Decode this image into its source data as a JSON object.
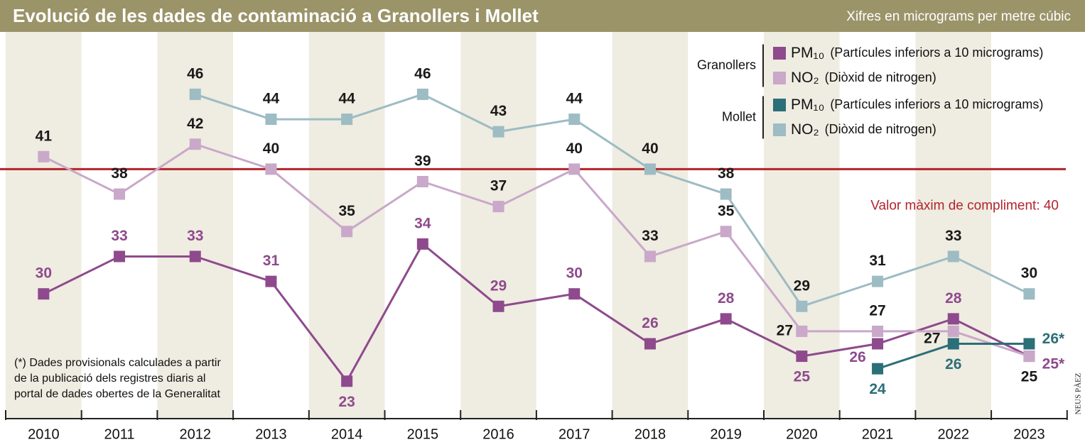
{
  "chart_data": {
    "type": "line",
    "title": "Evolució de les dades de contaminació a Granollers i Mollet",
    "subtitle": "Xifres en micrograms per metre cúbic",
    "categories": [
      "2010",
      "2011",
      "2012",
      "2013",
      "2014",
      "2015",
      "2016",
      "2017",
      "2018",
      "2019",
      "2020",
      "2021",
      "2022",
      "2023"
    ],
    "ylim": [
      20,
      51
    ],
    "legend_groups": [
      "Granollers",
      "Mollet"
    ],
    "series": [
      {
        "name": "PM₁₀",
        "description": "(Partícules inferiors a 10 micrograms)",
        "color": "#8e4a8c",
        "label_color": "#8e4a8c",
        "values": [
          30,
          33,
          33,
          31,
          23,
          34,
          29,
          30,
          26,
          28,
          25,
          26,
          28,
          25
        ],
        "value_labels": [
          "30",
          "33",
          "33",
          "31",
          "23",
          "34",
          "29",
          "30",
          "26",
          "28",
          "25",
          "26",
          "28",
          "25*"
        ]
      },
      {
        "name": "NO₂",
        "description": "(Diòxid de nitrogen)",
        "color": "#c9a8c9",
        "label_color": "#1a1a1a",
        "values": [
          41,
          38,
          42,
          40,
          35,
          39,
          37,
          40,
          33,
          35,
          27,
          27,
          27,
          25
        ]
      },
      {
        "name": "PM₁₀",
        "description": "(Partícules inferiors a 10 micrograms)",
        "color": "#2b6f78",
        "label_color": "#2b6f78",
        "values": [
          null,
          null,
          null,
          null,
          null,
          null,
          null,
          null,
          null,
          null,
          null,
          24,
          26,
          26
        ],
        "value_labels": [
          null,
          null,
          null,
          null,
          null,
          null,
          null,
          null,
          null,
          null,
          null,
          "24",
          "26",
          "26*"
        ]
      },
      {
        "name": "NO₂",
        "description": "(Diòxid de nitrogen)",
        "color": "#9dbcc3",
        "label_color": "#1a1a1a",
        "values": [
          null,
          null,
          46,
          44,
          44,
          46,
          43,
          44,
          40,
          38,
          29,
          31,
          33,
          30
        ]
      }
    ],
    "reference_line": {
      "value": 40,
      "label": "Valor màxim de compliment: 40",
      "color": "#b3242c"
    },
    "note": [
      "(*) Dades provisionals calculades a partir",
      "de la publicació dels registres diaris al",
      "portal de dades obertes de la Generalitat"
    ],
    "credit": "NEUS PÀEZ"
  }
}
